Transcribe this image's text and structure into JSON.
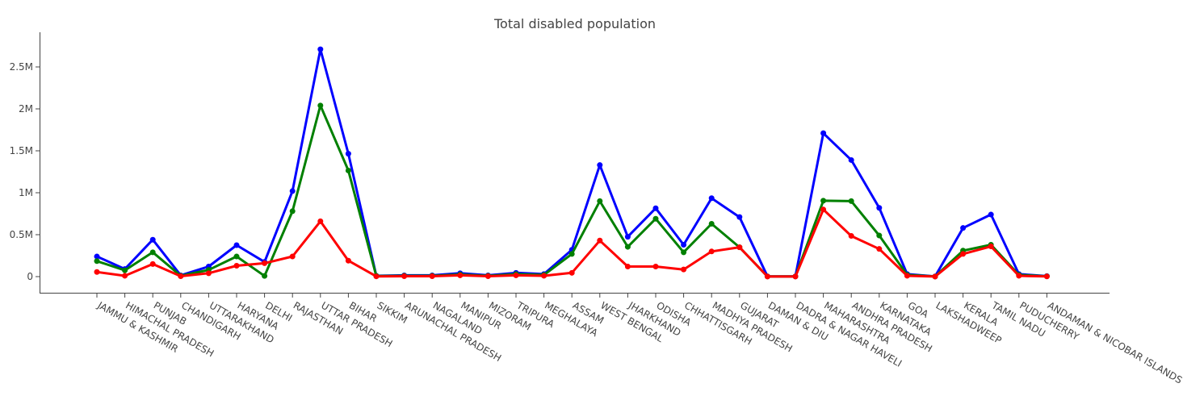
{
  "chart_data": {
    "type": "line",
    "title": "Total disabled population",
    "xlabel": "",
    "ylabel": "",
    "ylim": [
      -200000,
      2900000
    ],
    "yticks": [
      {
        "value": 0,
        "label": "0"
      },
      {
        "value": 500000,
        "label": "0.5M"
      },
      {
        "value": 1000000,
        "label": "1M"
      },
      {
        "value": 1500000,
        "label": "1.5M"
      },
      {
        "value": 2000000,
        "label": "2M"
      },
      {
        "value": 2500000,
        "label": "2.5M"
      }
    ],
    "grid": false,
    "legend": "none",
    "categories": [
      "JAMMU & KASHMIR",
      "HIMACHAL PRADESH",
      "PUNJAB",
      "CHANDIGARH",
      "UTTARAKHAND",
      "HARYANA",
      "DELHI",
      "RAJASTHAN",
      "UTTAR PRADESH",
      "BIHAR",
      "SIKKIM",
      "ARUNACHAL PRADESH",
      "NAGALAND",
      "MANIPUR",
      "MIZORAM",
      "TRIPURA",
      "MEGHALAYA",
      "ASSAM",
      "WEST BENGAL",
      "JHARKHAND",
      "ODISHA",
      "CHHATTISGARH",
      "MADHYA PRADESH",
      "GUJARAT",
      "DAMAN & DIU",
      "DADRA & NAGAR HAVELI",
      "MAHARASHTRA",
      "ANDHRA PRADESH",
      "KARNATAKA",
      "GOA",
      "LAKSHADWEEP",
      "KERALA",
      "TAMIL NADU",
      "PUDUCHERRY",
      "ANDAMAN & NICOBAR ISLANDS"
    ],
    "series": [
      {
        "color": "#0000ff",
        "values": [
          240000,
          90000,
          440000,
          15000,
          120000,
          375000,
          175000,
          1020000,
          2710000,
          1465000,
          10000,
          15000,
          15000,
          40000,
          15000,
          45000,
          30000,
          320000,
          1330000,
          475000,
          815000,
          380000,
          935000,
          710000,
          3000,
          3000,
          1710000,
          1390000,
          820000,
          30000,
          2000,
          580000,
          740000,
          30000,
          6000
        ]
      },
      {
        "color": "#008000",
        "values": [
          185000,
          75000,
          290000,
          10000,
          80000,
          240000,
          8000,
          780000,
          2040000,
          1265000,
          8000,
          10000,
          10000,
          25000,
          10000,
          30000,
          20000,
          270000,
          900000,
          355000,
          690000,
          290000,
          630000,
          350000,
          2000,
          2000,
          905000,
          900000,
          490000,
          20000,
          1500,
          310000,
          380000,
          20000,
          4000
        ]
      },
      {
        "color": "#ff0000",
        "values": [
          55000,
          10000,
          150000,
          5000,
          40000,
          130000,
          160000,
          240000,
          660000,
          190000,
          3000,
          5000,
          5000,
          15000,
          5000,
          15000,
          10000,
          45000,
          430000,
          120000,
          120000,
          85000,
          300000,
          350000,
          1000,
          1000,
          800000,
          485000,
          330000,
          10000,
          500,
          270000,
          360000,
          10000,
          2000
        ]
      }
    ]
  }
}
